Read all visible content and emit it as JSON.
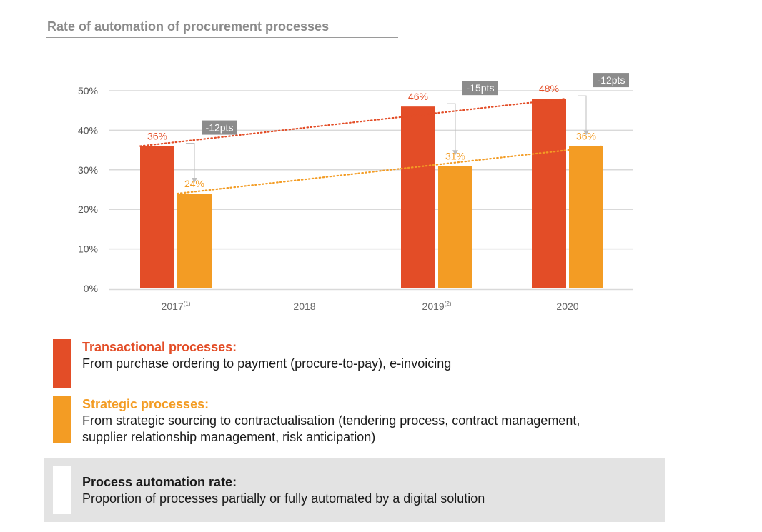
{
  "title": "Rate of automation of procurement processes",
  "colors": {
    "transactional": "#e34d27",
    "strategic": "#f39c24",
    "grid": "#d9d9d9",
    "axis_text": "#666666",
    "badge": "#8c8c8c"
  },
  "chart_data": {
    "type": "bar",
    "categories": [
      "2017",
      "2018",
      "2019",
      "2020"
    ],
    "category_footnotes": [
      "(1)",
      "",
      "(2)",
      ""
    ],
    "ylim": [
      0,
      50
    ],
    "y_ticks": [
      "0%",
      "10%",
      "20%",
      "30%",
      "40%",
      "50%"
    ],
    "series": [
      {
        "name": "Transactional processes",
        "values": [
          36,
          null,
          46,
          48
        ],
        "labels": [
          "36%",
          "",
          "46%",
          "48%"
        ]
      },
      {
        "name": "Strategic processes",
        "values": [
          24,
          null,
          31,
          36
        ],
        "labels": [
          "24%",
          "",
          "31%",
          "36%"
        ]
      }
    ],
    "gap_badges": [
      "-12pts",
      "",
      "-15pts",
      "-12pts"
    ],
    "trend_lines": true
  },
  "legend": [
    {
      "heading": "Transactional processes:",
      "text": "From purchase ordering to payment (procure-to-pay), e-invoicing"
    },
    {
      "heading": "Strategic processes:",
      "text_line1": "From strategic sourcing to contractualisation (tendering process, contract management,",
      "text_line2": "supplier relationship management, risk anticipation)"
    }
  ],
  "definition": {
    "heading": "Process automation rate:",
    "text": "Proportion of processes partially or fully automated by a digital solution"
  }
}
